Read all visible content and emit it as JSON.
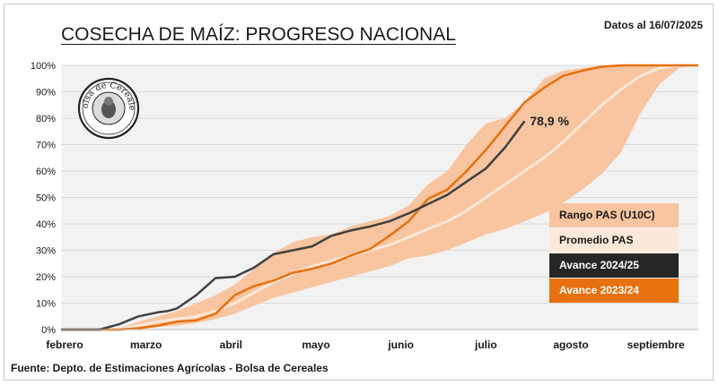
{
  "header": {
    "title": "COSECHA DE MAÍZ: PROGRESO NACIONAL",
    "date": "Datos al 16/07/2025"
  },
  "footer": {
    "source": "Fuente: Depto. de Estimaciones Agrícolas - Bolsa de Cereales"
  },
  "logo": {
    "text": "Bolsa de Cereales"
  },
  "colors": {
    "range": "#f8c5a0",
    "average": "#fde8d9",
    "current": "#404040",
    "previous": "#e8700f",
    "grid": "#d9d9d9",
    "axis_text": "#1a1a1a",
    "plot_bg": "#f2f2f2"
  },
  "chart_data": {
    "type": "line",
    "title": "COSECHA DE MAÍZ: PROGRESO NACIONAL",
    "xlabel": "",
    "ylabel": "",
    "x_tick_labels": [
      "febrero",
      "marzo",
      "abril",
      "mayo",
      "junio",
      "julio",
      "agosto",
      "septiembre"
    ],
    "y_tick_labels": [
      "0%",
      "10%",
      "20%",
      "30%",
      "40%",
      "50%",
      "60%",
      "70%",
      "80%",
      "90%",
      "100%"
    ],
    "ylim": [
      0,
      100
    ],
    "x_unit": "weeks",
    "xlim": [
      0,
      33
    ],
    "legend_position": "right",
    "grid": true,
    "annotation": {
      "text": "78,9 %"
    },
    "series": [
      {
        "name": "Rango PAS (U10C)",
        "kind": "band",
        "x": [
          0,
          2,
          3,
          4,
          5,
          6,
          7,
          8,
          9,
          10,
          11,
          12,
          13,
          14,
          15,
          16,
          17,
          18,
          19,
          20,
          21,
          22,
          23,
          24,
          25,
          26,
          27,
          28,
          29,
          30,
          31,
          32,
          33
        ],
        "low": [
          0,
          0,
          0,
          0,
          1,
          1.5,
          2.5,
          4,
          6,
          9,
          12,
          14,
          16,
          18,
          20,
          22,
          24,
          27,
          28,
          30,
          33,
          36,
          38,
          41,
          44,
          48,
          53,
          59,
          67,
          82,
          93,
          99,
          100
        ],
        "high": [
          0,
          0,
          0.5,
          3,
          5,
          7,
          10,
          13,
          17,
          23,
          29,
          33,
          35,
          36,
          39,
          41,
          43,
          47,
          55,
          60,
          70,
          78,
          80,
          86,
          95,
          98,
          99,
          100,
          100,
          100,
          100,
          100,
          100
        ]
      },
      {
        "name": "Promedio PAS",
        "kind": "line",
        "x": [
          0,
          2,
          3,
          4,
          5,
          6,
          7,
          8,
          9,
          10,
          11,
          12,
          13,
          14,
          15,
          16,
          17,
          18,
          19,
          20,
          21,
          22,
          23,
          24,
          25,
          26,
          27,
          28,
          29,
          30,
          31,
          32,
          33
        ],
        "values": [
          0,
          0,
          0,
          1.5,
          3,
          4,
          5,
          7,
          10,
          14,
          18,
          21,
          24,
          26,
          28,
          30,
          32,
          35,
          38,
          41,
          45,
          50,
          55,
          60,
          65,
          71,
          78,
          85,
          91,
          96,
          99,
          100,
          100
        ]
      },
      {
        "name": "Avance 2024/25",
        "kind": "line",
        "x": [
          0,
          2,
          3,
          4,
          5,
          5.5,
          6,
          7,
          8,
          9,
          10,
          11,
          12,
          13,
          14,
          15,
          16,
          17,
          18,
          19,
          20,
          21,
          22,
          23,
          24
        ],
        "values": [
          0,
          0,
          2,
          5,
          6.5,
          7,
          8,
          13,
          19.5,
          20,
          23.5,
          28.5,
          30,
          31.5,
          35.5,
          37.5,
          39,
          41,
          44,
          47.5,
          51,
          56,
          61,
          69,
          78.9
        ]
      },
      {
        "name": "Avance 2023/24",
        "kind": "line",
        "x": [
          0,
          3,
          4,
          5,
          6,
          7,
          8,
          9,
          10,
          11,
          12,
          13,
          14,
          15,
          16,
          17,
          18,
          19,
          20,
          21,
          22,
          23,
          24,
          25,
          26,
          27,
          28,
          29,
          30,
          31,
          32,
          33
        ],
        "values": [
          0,
          0,
          0.5,
          1.5,
          3,
          3.5,
          6,
          13,
          16.5,
          18.5,
          21.5,
          23,
          25,
          28,
          30.5,
          35.5,
          41,
          49.5,
          53,
          60,
          68,
          77,
          86,
          91.5,
          96,
          98,
          99.5,
          100,
          100,
          100,
          100,
          100
        ]
      }
    ]
  },
  "legend": {
    "items": [
      {
        "label": "Rango PAS (U10C)",
        "bg": "#f8c5a0",
        "fg": "#1a1a1a"
      },
      {
        "label": "Promedio PAS",
        "bg": "#fde8d9",
        "fg": "#1a1a1a"
      },
      {
        "label": "Avance 2024/25",
        "bg": "#262626",
        "fg": "#ffffff"
      },
      {
        "label": "Avance 2023/24",
        "bg": "#e8700f",
        "fg": "#ffffff"
      }
    ]
  }
}
